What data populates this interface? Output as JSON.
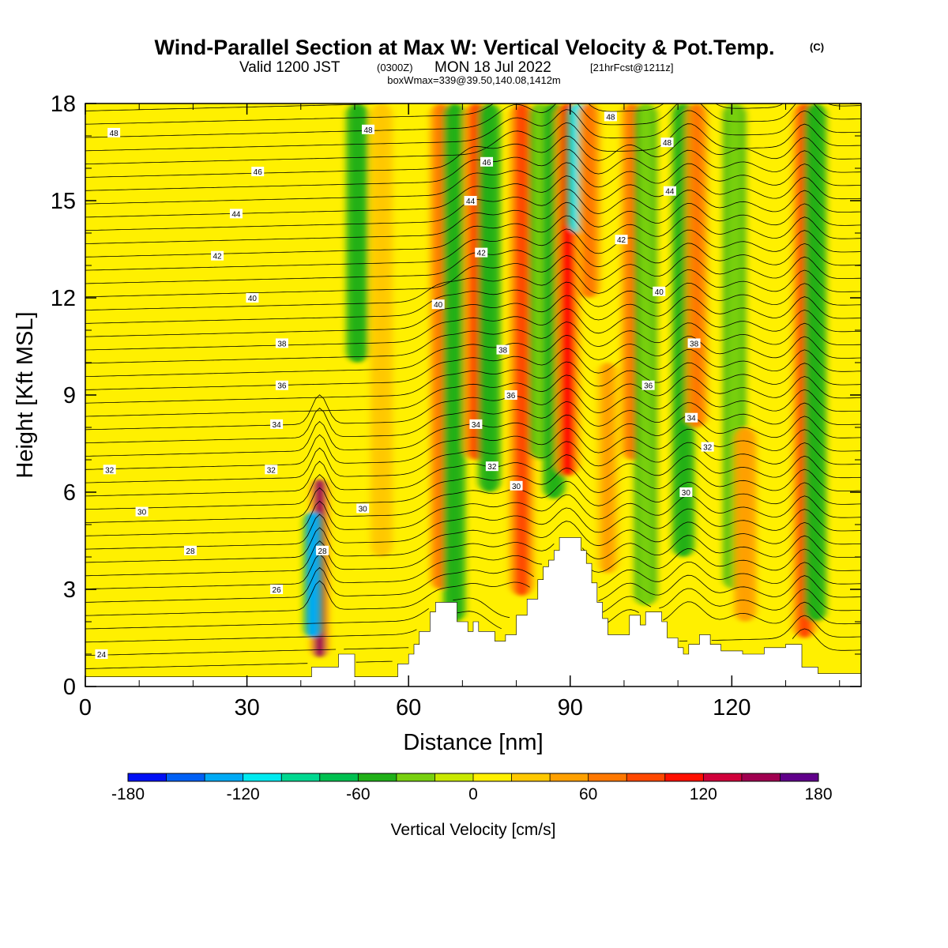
{
  "header": {
    "title": "Wind-Parallel Section at Max W: Vertical Velocity & Pot.Temp.",
    "copyright_mark": "(C)",
    "valid_prefix": "Valid 1200 JST",
    "utc_time": "(0300Z)",
    "valid_date": "MON 18 Jul 2022",
    "forecast_info": "[21hrFcst@1211z]",
    "box_info": "boxWmax=339@39.50,140.08,1412m"
  },
  "chart_data": {
    "type": "heatmap",
    "title": "Wind-Parallel Section at Max W: Vertical Velocity & Pot.Temp.",
    "xlabel": "Distance [nm]",
    "ylabel": "Height [Kft MSL]",
    "xlim": [
      0,
      144
    ],
    "ylim": [
      0,
      18
    ],
    "x_ticks": [
      0,
      30,
      60,
      90,
      120
    ],
    "y_ticks": [
      0,
      3,
      6,
      9,
      12,
      15,
      18
    ],
    "x_tick_labels": [
      "0",
      "30",
      "60",
      "90",
      "120"
    ],
    "y_tick_labels": [
      "0",
      "3",
      "6",
      "9",
      "12",
      "15",
      "18"
    ],
    "background_field_value": 0,
    "velocity_bands": [
      {
        "x": 43.5,
        "value": 150,
        "y_from": 0.9,
        "y_to": 6.4
      },
      {
        "x": 42.3,
        "value": -130,
        "y_from": 1.5,
        "y_to": 5.4
      },
      {
        "x": 50.5,
        "value": -45,
        "y_from": 10.0,
        "y_to": 18.0
      },
      {
        "x": 55.0,
        "value": 30,
        "y_from": 4.0,
        "y_to": 18.0
      },
      {
        "x": 66.0,
        "value": 60,
        "y_from": 3.0,
        "y_to": 18.0
      },
      {
        "x": 68.5,
        "value": -50,
        "y_from": 2.0,
        "y_to": 18.0
      },
      {
        "x": 72.5,
        "value": 90,
        "y_from": 7.0,
        "y_to": 18.0
      },
      {
        "x": 75.0,
        "value": -50,
        "y_from": 6.0,
        "y_to": 18.0
      },
      {
        "x": 81.0,
        "value": 80,
        "y_from": 2.8,
        "y_to": 18.0
      },
      {
        "x": 84.5,
        "value": -40,
        "y_from": 7.0,
        "y_to": 18.0
      },
      {
        "x": 87.0,
        "value": -60,
        "y_from": 5.8,
        "y_to": 18.0
      },
      {
        "x": 89.5,
        "value": 110,
        "y_from": 6.5,
        "y_to": 18.0
      },
      {
        "x": 91.5,
        "value": -110,
        "y_from": 14.0,
        "y_to": 18.0
      },
      {
        "x": 93.5,
        "value": 60,
        "y_from": 12.0,
        "y_to": 18.0
      },
      {
        "x": 97.0,
        "value": 40,
        "y_from": 3.5,
        "y_to": 10.0
      },
      {
        "x": 101.5,
        "value": 70,
        "y_from": 7.0,
        "y_to": 18.0
      },
      {
        "x": 104.0,
        "value": -40,
        "y_from": 2.5,
        "y_to": 18.0
      },
      {
        "x": 111.0,
        "value": -60,
        "y_from": 4.0,
        "y_to": 18.0
      },
      {
        "x": 113.5,
        "value": 70,
        "y_from": 8.0,
        "y_to": 18.0
      },
      {
        "x": 120.5,
        "value": -40,
        "y_from": 3.0,
        "y_to": 18.0
      },
      {
        "x": 122.5,
        "value": 50,
        "y_from": 2.0,
        "y_to": 8.0
      },
      {
        "x": 133.5,
        "value": 80,
        "y_from": 1.5,
        "y_to": 18.0
      },
      {
        "x": 135.5,
        "value": -45,
        "y_from": 2.0,
        "y_to": 18.0
      }
    ],
    "terrain_kft": [
      [
        0,
        0.3
      ],
      [
        41,
        0.3
      ],
      [
        42,
        0.6
      ],
      [
        46,
        0.6
      ],
      [
        47,
        1.0
      ],
      [
        49,
        1.0
      ],
      [
        50,
        0.3
      ],
      [
        56,
        0.3
      ],
      [
        58,
        0.7
      ],
      [
        60,
        1.0
      ],
      [
        61,
        1.3
      ],
      [
        62,
        1.7
      ],
      [
        64,
        2.3
      ],
      [
        65,
        2.6
      ],
      [
        68,
        2.6
      ],
      [
        69,
        2.0
      ],
      [
        71,
        1.7
      ],
      [
        72,
        2.0
      ],
      [
        73,
        1.7
      ],
      [
        76,
        1.4
      ],
      [
        78,
        1.6
      ],
      [
        80,
        2.2
      ],
      [
        82,
        2.7
      ],
      [
        84,
        3.3
      ],
      [
        85,
        3.7
      ],
      [
        86,
        3.9
      ],
      [
        87,
        4.2
      ],
      [
        88,
        4.6
      ],
      [
        91,
        4.6
      ],
      [
        92,
        4.2
      ],
      [
        93,
        3.8
      ],
      [
        94,
        3.2
      ],
      [
        95,
        2.6
      ],
      [
        96,
        2.1
      ],
      [
        97,
        1.6
      ],
      [
        99,
        1.6
      ],
      [
        101,
        2.2
      ],
      [
        103,
        1.9
      ],
      [
        104,
        2.3
      ],
      [
        106,
        2.3
      ],
      [
        107,
        2.0
      ],
      [
        108,
        1.5
      ],
      [
        110,
        1.2
      ],
      [
        111,
        1.0
      ],
      [
        112,
        1.3
      ],
      [
        114,
        1.6
      ],
      [
        116,
        1.3
      ],
      [
        118,
        1.1
      ],
      [
        120,
        1.1
      ],
      [
        122,
        1.0
      ],
      [
        124,
        1.0
      ],
      [
        126,
        1.2
      ],
      [
        128,
        1.2
      ],
      [
        130,
        1.3
      ],
      [
        132,
        1.3
      ],
      [
        133,
        0.6
      ],
      [
        135,
        0.6
      ],
      [
        136,
        0.4
      ],
      [
        144,
        0.4
      ]
    ],
    "pot_temp_labels": [
      {
        "value": "48",
        "x": 5.3,
        "y": 17.1
      },
      {
        "value": "48",
        "x": 52.5,
        "y": 17.2
      },
      {
        "value": "48",
        "x": 97.5,
        "y": 17.6
      },
      {
        "value": "48",
        "x": 108.0,
        "y": 16.8
      },
      {
        "value": "46",
        "x": 32.0,
        "y": 15.9
      },
      {
        "value": "46",
        "x": 74.5,
        "y": 16.2
      },
      {
        "value": "44",
        "x": 28.0,
        "y": 14.6
      },
      {
        "value": "44",
        "x": 71.5,
        "y": 15.0
      },
      {
        "value": "44",
        "x": 108.5,
        "y": 15.3
      },
      {
        "value": "42",
        "x": 24.5,
        "y": 13.3
      },
      {
        "value": "42",
        "x": 73.5,
        "y": 13.4
      },
      {
        "value": "42",
        "x": 99.5,
        "y": 13.8
      },
      {
        "value": "40",
        "x": 31.0,
        "y": 12.0
      },
      {
        "value": "40",
        "x": 65.5,
        "y": 11.8
      },
      {
        "value": "40",
        "x": 106.5,
        "y": 12.2
      },
      {
        "value": "38",
        "x": 36.5,
        "y": 10.6
      },
      {
        "value": "38",
        "x": 77.5,
        "y": 10.4
      },
      {
        "value": "38",
        "x": 113.0,
        "y": 10.6
      },
      {
        "value": "36",
        "x": 36.5,
        "y": 9.3
      },
      {
        "value": "36",
        "x": 79.0,
        "y": 9.0
      },
      {
        "value": "36",
        "x": 104.5,
        "y": 9.3
      },
      {
        "value": "34",
        "x": 35.5,
        "y": 8.1
      },
      {
        "value": "34",
        "x": 72.5,
        "y": 8.1
      },
      {
        "value": "34",
        "x": 112.5,
        "y": 8.3
      },
      {
        "value": "32",
        "x": 4.5,
        "y": 6.7
      },
      {
        "value": "32",
        "x": 34.5,
        "y": 6.7
      },
      {
        "value": "32",
        "x": 75.5,
        "y": 6.8
      },
      {
        "value": "32",
        "x": 115.5,
        "y": 7.4
      },
      {
        "value": "30",
        "x": 10.5,
        "y": 5.4
      },
      {
        "value": "30",
        "x": 51.5,
        "y": 5.5
      },
      {
        "value": "30",
        "x": 80.0,
        "y": 6.2
      },
      {
        "value": "30",
        "x": 111.5,
        "y": 6.0
      },
      {
        "value": "28",
        "x": 19.5,
        "y": 4.2
      },
      {
        "value": "28",
        "x": 44.0,
        "y": 4.2
      },
      {
        "value": "26",
        "x": 35.5,
        "y": 3.0
      },
      {
        "value": "24",
        "x": 3.0,
        "y": 1.0
      }
    ],
    "colorbar": {
      "label": "Vertical Velocity [cm/s]",
      "min": -180,
      "max": 180,
      "tick_values": [
        -180,
        -120,
        -60,
        0,
        60,
        120,
        180
      ],
      "tick_labels": [
        "-180",
        "-120",
        "-60",
        "0",
        "60",
        "120",
        "180"
      ],
      "colors": [
        "#0010f5",
        "#0060f5",
        "#00aaf5",
        "#00eaf0",
        "#00d890",
        "#00c050",
        "#20b018",
        "#78d010",
        "#c8e800",
        "#fff000",
        "#ffc800",
        "#ffa000",
        "#ff7800",
        "#ff4800",
        "#ff1000",
        "#d0003a",
        "#a00050",
        "#60008a"
      ]
    }
  }
}
